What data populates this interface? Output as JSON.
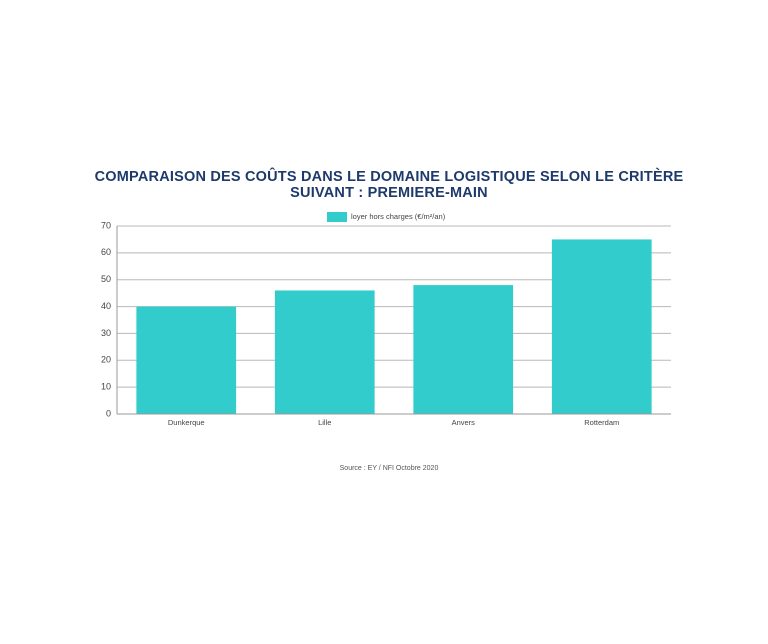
{
  "chart_data": {
    "type": "bar",
    "title": [
      "COMPARAISON DES COÛTS DANS LE DOMAINE LOGISTIQUE SELON LE CRITÈRE",
      "SUIVANT : PREMIERE-MAIN"
    ],
    "series": [
      {
        "name": "loyer hors charges (€/m²/an)",
        "color": "#33cccc",
        "values": [
          40,
          46,
          48,
          65
        ]
      }
    ],
    "categories": [
      "Dunkerque",
      "Lille",
      "Anvers",
      "Rotterdam"
    ],
    "ylim": [
      0,
      70
    ],
    "yticks": [
      0,
      10,
      20,
      30,
      40,
      50,
      60,
      70
    ],
    "grid": true,
    "source": "Source : EY / NFI Octobre 2020"
  }
}
